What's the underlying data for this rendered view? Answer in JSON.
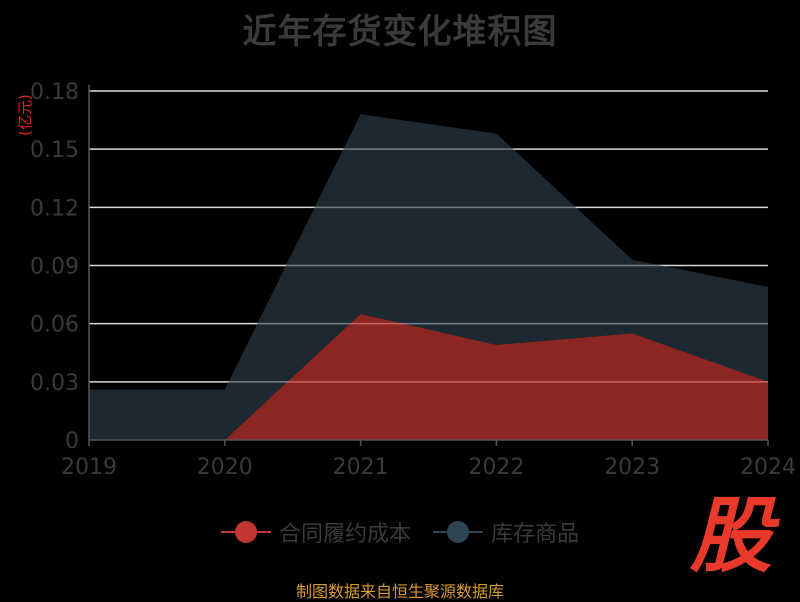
{
  "chart_data": {
    "type": "area",
    "title": "近年存货变化堆积图",
    "ylabel": "(亿元)",
    "xlabel": "",
    "x": [
      "2019",
      "2020",
      "2021",
      "2022",
      "2023",
      "2024"
    ],
    "ylim": [
      0,
      0.18
    ],
    "yticks": [
      "0",
      "0.03",
      "0.06",
      "0.09",
      "0.12",
      "0.15",
      "0.18"
    ],
    "grid": true,
    "stacked": true,
    "legend_position": "bottom",
    "series": [
      {
        "name": "合同履约成本",
        "color": "#c23531",
        "values": [
          0,
          0,
          0.065,
          0.049,
          0.055,
          0.03
        ]
      },
      {
        "name": "库存商品",
        "color": "#2f4554",
        "values": [
          0.026,
          0.026,
          0.103,
          0.109,
          0.038,
          0.049
        ]
      }
    ]
  },
  "source_note": "制图数据来自恒生聚源数据库",
  "watermark": "股"
}
